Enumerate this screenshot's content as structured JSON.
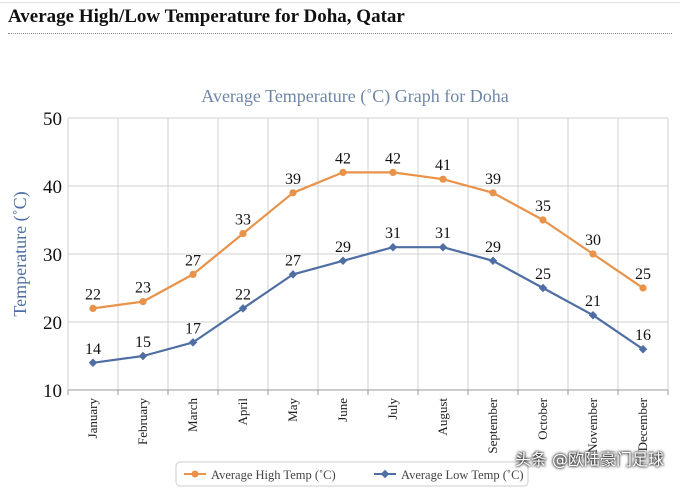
{
  "page": {
    "heading": "Average High/Low Temperature for Doha, Qatar",
    "watermark": "头条 @欧陆豪门足球"
  },
  "chart_data": {
    "type": "line",
    "title": "Average Temperature (˚C) Graph for Doha",
    "ylabel": "Temperature (˚C)",
    "xlabel": "",
    "ylim": [
      10,
      50
    ],
    "yticks": [
      10,
      20,
      30,
      40,
      50
    ],
    "grid": true,
    "legend_position": "bottom",
    "categories": [
      "January",
      "February",
      "March",
      "April",
      "May",
      "June",
      "July",
      "August",
      "September",
      "October",
      "November",
      "December"
    ],
    "series": [
      {
        "name": "Average High Temp (˚C)",
        "color": "#e8924a",
        "values": [
          22,
          23,
          27,
          33,
          39,
          42,
          42,
          41,
          39,
          35,
          30,
          25
        ]
      },
      {
        "name": "Average Low Temp (˚C)",
        "color": "#4f6ea3",
        "values": [
          14,
          15,
          17,
          22,
          27,
          29,
          31,
          31,
          29,
          25,
          21,
          16
        ]
      }
    ],
    "colors": {
      "title": "#6f86a8",
      "ylabel": "#4f6ea3",
      "grid": "#d0d0d0"
    }
  }
}
